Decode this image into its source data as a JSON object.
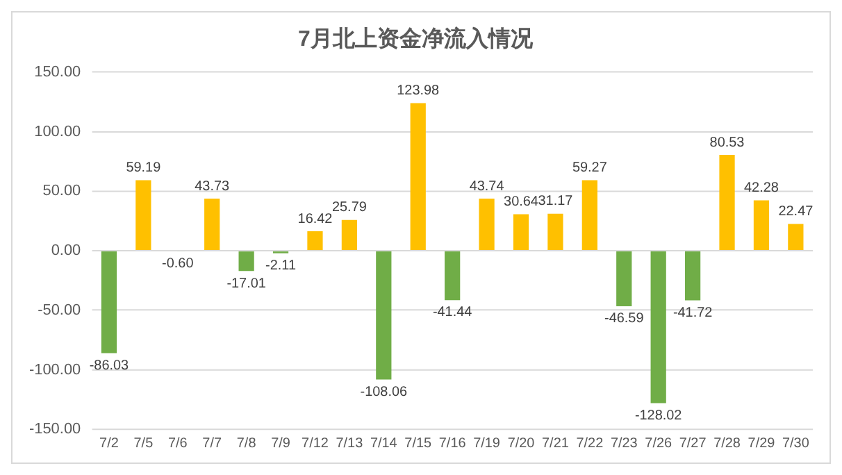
{
  "chart_data": {
    "type": "bar",
    "title": "7月北上资金净流入情况",
    "categories": [
      "7/2",
      "7/5",
      "7/6",
      "7/7",
      "7/8",
      "7/9",
      "7/12",
      "7/13",
      "7/14",
      "7/15",
      "7/16",
      "7/19",
      "7/20",
      "7/21",
      "7/22",
      "7/23",
      "7/26",
      "7/27",
      "7/28",
      "7/29",
      "7/30"
    ],
    "values": [
      -86.03,
      59.19,
      -0.6,
      43.73,
      -17.01,
      -2.11,
      16.42,
      25.79,
      -108.06,
      123.98,
      -41.44,
      43.74,
      30.64,
      31.17,
      59.27,
      -46.59,
      -128.02,
      -41.72,
      80.53,
      42.28,
      22.47
    ],
    "value_labels": [
      "-86.03",
      "59.19",
      "-0.60",
      "43.73",
      "-17.01",
      "-2.11",
      "16.42",
      "25.79",
      "-108.06",
      "123.98",
      "-41.44",
      "43.74",
      "30.64",
      "31.17",
      "59.27",
      "-46.59",
      "-128.02",
      "-41.72",
      "80.53",
      "42.28",
      "22.47"
    ],
    "colors": [
      "#70ad47",
      "#ffc000",
      "#70ad47",
      "#ffc000",
      "#70ad47",
      "#70ad47",
      "#ffc000",
      "#ffc000",
      "#70ad47",
      "#ffc000",
      "#70ad47",
      "#ffc000",
      "#ffc000",
      "#ffc000",
      "#ffc000",
      "#70ad47",
      "#70ad47",
      "#70ad47",
      "#ffc000",
      "#ffc000",
      "#ffc000"
    ],
    "ylim": [
      -150,
      150
    ],
    "yticks": [
      {
        "value": -150,
        "label": "-150.00"
      },
      {
        "value": -100,
        "label": "-100.00"
      },
      {
        "value": -50,
        "label": "-50.00"
      },
      {
        "value": 0,
        "label": "0.00"
      },
      {
        "value": 50,
        "label": "50.00"
      },
      {
        "value": 100,
        "label": "100.00"
      },
      {
        "value": 150,
        "label": "150.00"
      }
    ],
    "grid": "y",
    "legend": false
  }
}
